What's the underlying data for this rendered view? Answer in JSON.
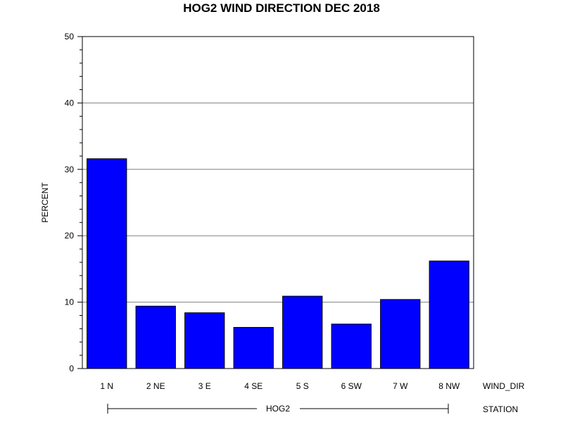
{
  "chart_data": {
    "type": "bar",
    "title": "HOG2 WIND DIRECTION DEC 2018",
    "ylabel": "PERCENT",
    "xlabel": "WIND_DIR",
    "group_axis_label": "STATION",
    "group_label": "HOG2",
    "categories": [
      "1 N",
      "2 NE",
      "3 E",
      "4 SE",
      "5 S",
      "6 SW",
      "7 W",
      "8 NW"
    ],
    "values": [
      31.6,
      9.4,
      8.4,
      6.2,
      10.9,
      6.7,
      10.4,
      16.2
    ],
    "ylim": [
      0,
      50
    ],
    "yticks": [
      "0",
      "10",
      "20",
      "30",
      "40",
      "50"
    ],
    "grid": true,
    "bar_color": "#0000FF"
  }
}
